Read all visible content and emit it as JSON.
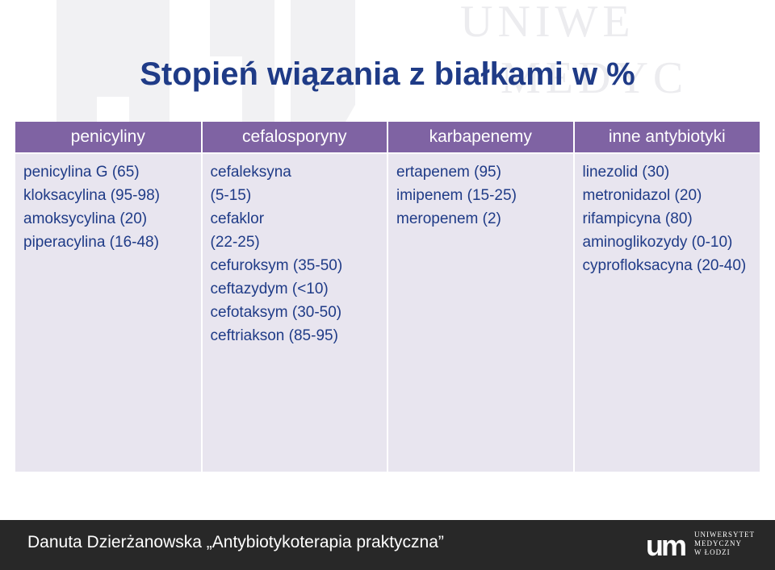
{
  "title": "Stopień wiązania z białkami w %",
  "table": {
    "headers": [
      "penicyliny",
      "cefalosporyny",
      "karbapenemy",
      "inne antybiotyki"
    ],
    "columns": [
      [
        "penicylina G (65)",
        "kloksacylina (95-98)",
        "amoksycylina (20)",
        "piperacylina (16-48)"
      ],
      [
        "cefaleksyna",
        "(5-15)",
        "cefaklor",
        "(22-25)",
        "cefuroksym (35-50)",
        "ceftazydym (<10)",
        "cefotaksym (30-50)",
        "ceftriakson (85-95)"
      ],
      [
        "ertapenem (95)",
        "imipenem (15-25)",
        "meropenem (2)"
      ],
      [
        "linezolid (30)",
        "metronidazol (20)",
        "rifampicyna (80)",
        "aminoglikozydy (0-10)",
        "cyprofloksacyna (20-40)"
      ]
    ]
  },
  "footer": {
    "text": "Danuta Dzierżanowska „Antybiotykoterapia praktyczna”",
    "logo_lines": [
      "UNIWERSYTET",
      "MEDYCZNY",
      "W ŁODZI"
    ],
    "logo_mark": "um"
  },
  "watermark": {
    "lines": [
      "UNIWE",
      "MEDYC"
    ]
  },
  "colors": {
    "title": "#1f3b87",
    "header_bg": "#7f63a3",
    "cell_bg": "#e8e5ef",
    "cell_text": "#1f3b87",
    "footer_bg": "#282828"
  }
}
